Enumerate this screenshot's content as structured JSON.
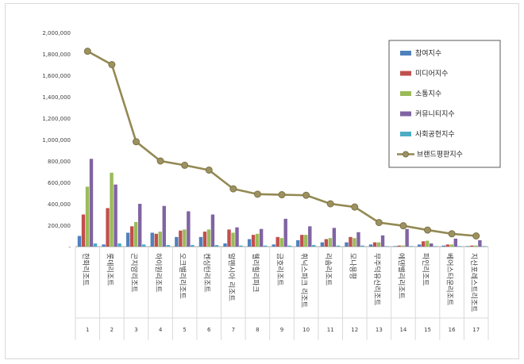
{
  "chart_data": {
    "type": "bar",
    "categories": [
      "한화리조트",
      "롯데리조트",
      "곤지암리조트",
      "하이원리조트",
      "오크밸리리조트",
      "켄싱턴리조트",
      "알펜시아 리조트",
      "웰리힐리파크",
      "금호리조트",
      "휘닉스파크 리조트",
      "리솜리조트",
      "모나용평",
      "무주덕유산리조트",
      "에덴밸리리조트",
      "파인리조트",
      "베어스타운리조트",
      "지산포레스트리조트"
    ],
    "index_labels": [
      "1",
      "2",
      "3",
      "4",
      "5",
      "6",
      "7",
      "8",
      "9",
      "10",
      "11",
      "12",
      "13",
      "14",
      "15",
      "16",
      "17"
    ],
    "ylim": [
      0,
      2000000
    ],
    "yticks": [
      0,
      200000,
      400000,
      600000,
      800000,
      1000000,
      1200000,
      1400000,
      1600000,
      1800000,
      2000000
    ],
    "ytick_labels": [
      "-",
      "200,000",
      "400,000",
      "600,000",
      "800,000",
      "1,000,000",
      "1,200,000",
      "1,400,000",
      "1,600,000",
      "1,800,000",
      "2,000,000"
    ],
    "series": [
      {
        "name": "참여지수",
        "color": "#4f81bd",
        "values": [
          100000,
          20000,
          130000,
          130000,
          90000,
          90000,
          30000,
          70000,
          20000,
          60000,
          40000,
          40000,
          20000,
          5000,
          20000,
          10000,
          5000
        ]
      },
      {
        "name": "미디어지수",
        "color": "#c0504d",
        "values": [
          300000,
          360000,
          190000,
          120000,
          150000,
          140000,
          160000,
          110000,
          90000,
          110000,
          70000,
          90000,
          40000,
          10000,
          50000,
          20000,
          10000
        ]
      },
      {
        "name": "소통지수",
        "color": "#9bbb59",
        "values": [
          560000,
          690000,
          230000,
          140000,
          160000,
          160000,
          130000,
          120000,
          80000,
          110000,
          80000,
          80000,
          40000,
          10000,
          55000,
          20000,
          10000
        ]
      },
      {
        "name": "커뮤니티지수",
        "color": "#8064a2",
        "values": [
          820000,
          580000,
          400000,
          380000,
          330000,
          300000,
          180000,
          165000,
          260000,
          190000,
          175000,
          135000,
          105000,
          165000,
          30000,
          75000,
          60000
        ]
      },
      {
        "name": "사회공헌지수",
        "color": "#4bacc6",
        "values": [
          30000,
          30000,
          20000,
          15000,
          15000,
          15000,
          10000,
          10000,
          10000,
          15000,
          10000,
          10000,
          5000,
          5000,
          5000,
          5000,
          5000
        ]
      }
    ],
    "line_series": {
      "name": "브랜드평판지수",
      "color": "#938953",
      "values": [
        1825000,
        1700000,
        980000,
        800000,
        760000,
        715000,
        540000,
        490000,
        485000,
        480000,
        400000,
        370000,
        225000,
        195000,
        155000,
        120000,
        100000
      ]
    },
    "legend_position": "top-right"
  }
}
